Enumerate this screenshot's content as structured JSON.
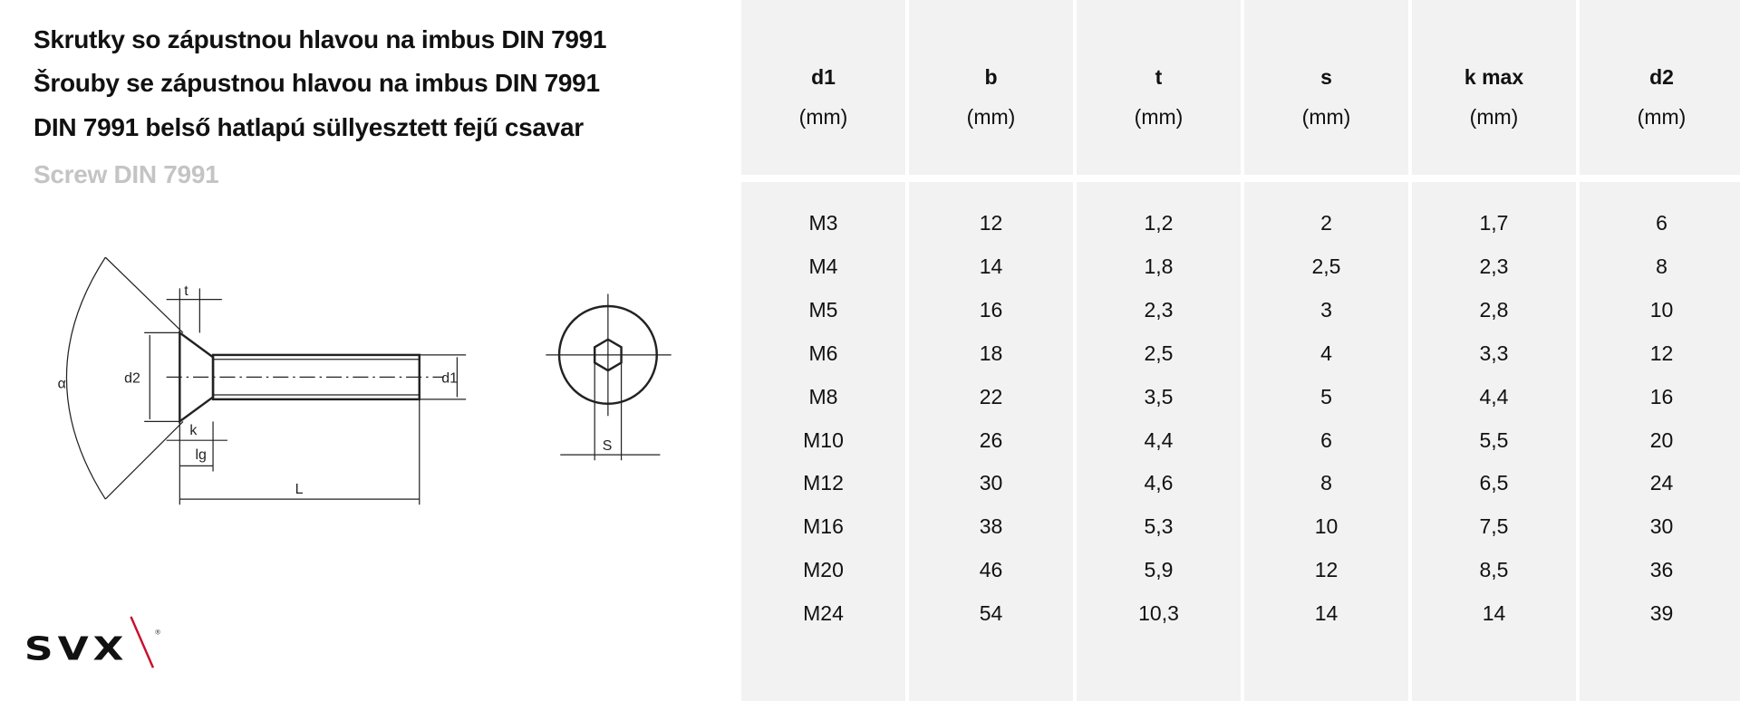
{
  "titles": [
    "Skrutky so zápustnou hlavou na imbus DIN 7991",
    "Šrouby se zápustnou hlavou na imbus DIN 7991",
    "DIN 7991 belső hatlapú süllyesztett fejű csavar",
    "Screw DIN 7991"
  ],
  "drawing_labels": {
    "alpha": "α",
    "t": "t",
    "d2": "d2",
    "d1": "d1",
    "k": "k",
    "lg": "lg",
    "L": "L",
    "s": "S"
  },
  "logo": {
    "text": "SVX",
    "accent": "#c8102e"
  },
  "table": {
    "columns": [
      {
        "name": "d1",
        "unit": "(mm)"
      },
      {
        "name": "b",
        "unit": "(mm)"
      },
      {
        "name": "t",
        "unit": "(mm)"
      },
      {
        "name": "s",
        "unit": "(mm)"
      },
      {
        "name": "k max",
        "unit": "(mm)"
      },
      {
        "name": "d2",
        "unit": "(mm)"
      }
    ],
    "rows": [
      [
        "M3",
        "12",
        "1,2",
        "2",
        "1,7",
        "6"
      ],
      [
        "M4",
        "14",
        "1,8",
        "2,5",
        "2,3",
        "8"
      ],
      [
        "M5",
        "16",
        "2,3",
        "3",
        "2,8",
        "10"
      ],
      [
        "M6",
        "18",
        "2,5",
        "4",
        "3,3",
        "12"
      ],
      [
        "M8",
        "22",
        "3,5",
        "5",
        "4,4",
        "16"
      ],
      [
        "M10",
        "26",
        "4,4",
        "6",
        "5,5",
        "20"
      ],
      [
        "M12",
        "30",
        "4,6",
        "8",
        "6,5",
        "24"
      ],
      [
        "M16",
        "38",
        "5,3",
        "10",
        "7,5",
        "30"
      ],
      [
        "M20",
        "46",
        "5,9",
        "12",
        "8,5",
        "36"
      ],
      [
        "M24",
        "54",
        "10,3",
        "14",
        "14",
        "39"
      ]
    ]
  },
  "colors": {
    "cell_bg": "#f2f2f2",
    "text": "#111111",
    "subtitle": "#c4c4c4"
  }
}
